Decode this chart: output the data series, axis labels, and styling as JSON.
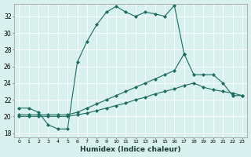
{
  "xlabel": "Humidex (Indice chaleur)",
  "xlim": [
    -0.5,
    23.5
  ],
  "ylim": [
    17.5,
    33.5
  ],
  "yticks": [
    18,
    20,
    22,
    24,
    26,
    28,
    30,
    32
  ],
  "xticks": [
    0,
    1,
    2,
    3,
    4,
    5,
    6,
    7,
    8,
    9,
    10,
    11,
    12,
    13,
    14,
    15,
    16,
    17,
    18,
    19,
    20,
    21,
    22,
    23
  ],
  "bg_color": "#d8f0ee",
  "grid_color": "#b8ddd9",
  "line_color": "#1a6b60",
  "line1_x": [
    0,
    1,
    2,
    3,
    4,
    5,
    6,
    7,
    8,
    9,
    10,
    11,
    12,
    13,
    14,
    15,
    16,
    17
  ],
  "line1_y": [
    21.0,
    21.0,
    20.5,
    19.0,
    18.5,
    18.5,
    26.5,
    29.0,
    31.0,
    32.5,
    33.2,
    32.5,
    32.0,
    32.5,
    32.3,
    32.0,
    33.3,
    27.5
  ],
  "line2_x": [
    0,
    1,
    2,
    3,
    4,
    5,
    6,
    7,
    8,
    9,
    10,
    11,
    12,
    13,
    14,
    15,
    16,
    17,
    18,
    19,
    20,
    21,
    22,
    23
  ],
  "line2_y": [
    20.2,
    20.2,
    20.2,
    20.2,
    20.2,
    20.2,
    20.5,
    21.0,
    21.5,
    22.0,
    22.5,
    23.0,
    23.5,
    24.0,
    24.5,
    25.0,
    25.5,
    27.5,
    25.0,
    25.0,
    25.0,
    24.0,
    22.5,
    22.5
  ],
  "line3_x": [
    0,
    1,
    2,
    3,
    4,
    5,
    6,
    7,
    8,
    9,
    10,
    11,
    12,
    13,
    14,
    15,
    16,
    17,
    18,
    19,
    20,
    21,
    22,
    23
  ],
  "line3_y": [
    20.0,
    20.0,
    20.0,
    20.0,
    20.0,
    20.0,
    20.2,
    20.4,
    20.7,
    21.0,
    21.3,
    21.6,
    22.0,
    22.3,
    22.7,
    23.0,
    23.3,
    23.7,
    24.0,
    23.5,
    23.2,
    23.0,
    22.8,
    22.5
  ]
}
